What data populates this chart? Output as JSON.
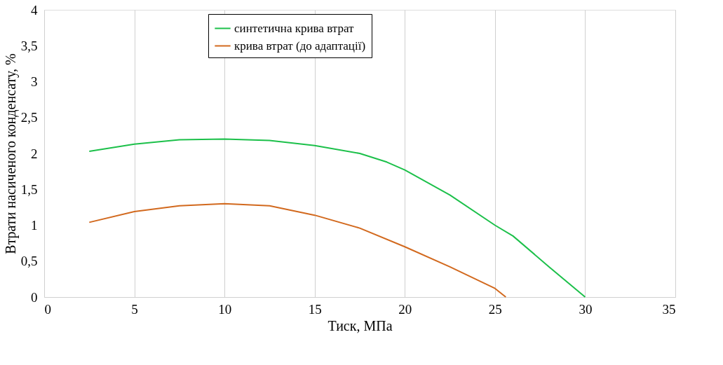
{
  "chart_data": {
    "type": "line",
    "xlabel": "Тиск, МПа",
    "ylabel": "Втрати насиченого конденсату, %",
    "series": [
      {
        "name": "синтетична крива втрат",
        "color": "#1cc04a",
        "x": [
          2.5,
          5,
          7.5,
          10,
          12.5,
          15,
          17.5,
          19,
          20,
          22.5,
          25,
          26,
          28,
          30
        ],
        "values": [
          2.03,
          2.13,
          2.19,
          2.2,
          2.18,
          2.11,
          2.0,
          1.88,
          1.77,
          1.42,
          1.0,
          0.85,
          0.42,
          0
        ]
      },
      {
        "name": "крива втрат (до адаптації)",
        "color": "#d2691e",
        "x": [
          2.5,
          5,
          7.5,
          10,
          12.5,
          15,
          17.5,
          20,
          22.5,
          25,
          25.6
        ],
        "values": [
          1.04,
          1.19,
          1.27,
          1.3,
          1.27,
          1.14,
          0.96,
          0.7,
          0.42,
          0.12,
          0
        ]
      }
    ],
    "xlim": [
      0,
      35
    ],
    "xticks": [
      0,
      5,
      10,
      15,
      20,
      25,
      30,
      35
    ],
    "ylim": [
      0,
      4
    ],
    "yticks": [
      0,
      {
        "value": 0.5,
        "label": "0,5"
      },
      1,
      {
        "value": 1.5,
        "label": "1,5"
      },
      2,
      {
        "value": 2.5,
        "label": "2,5"
      },
      3,
      {
        "value": 3.5,
        "label": "3,5"
      },
      4
    ],
    "grid": "x",
    "legend": "top",
    "marker": "none",
    "line_style": "solid"
  }
}
